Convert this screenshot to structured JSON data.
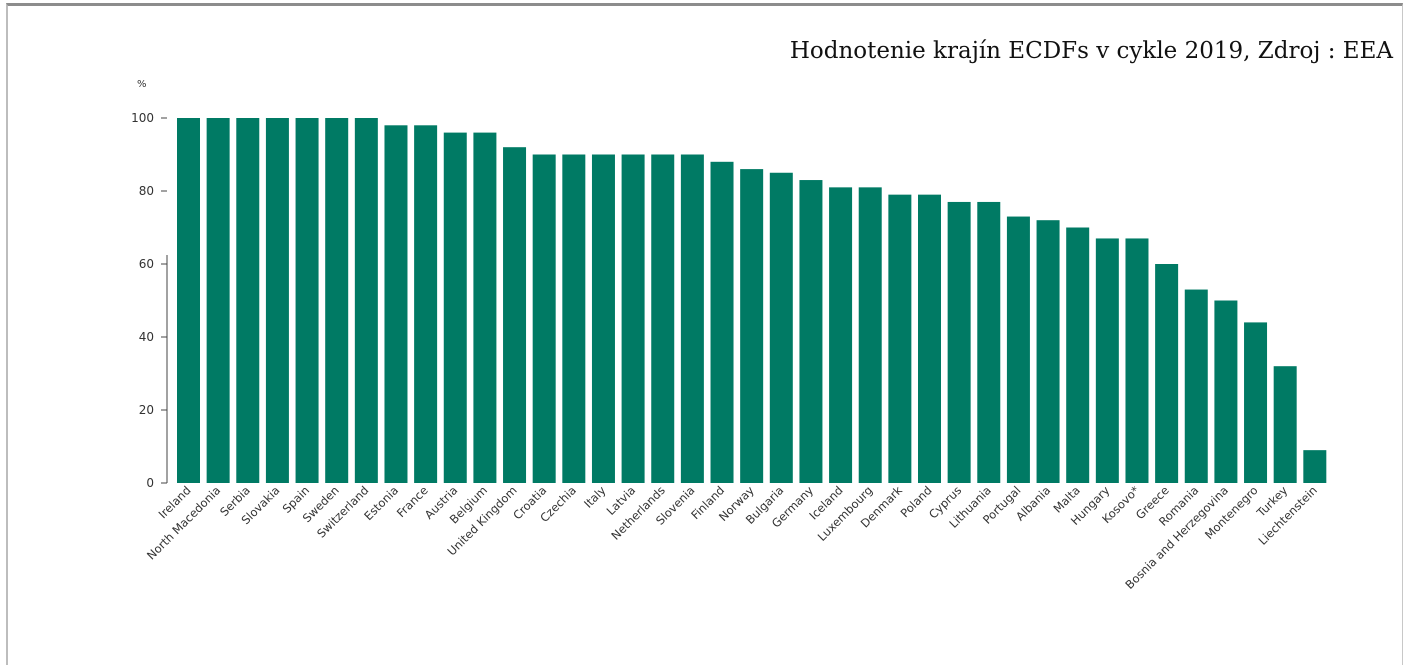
{
  "source_title": "Hodnotenie krajín ECDFs v cykle 2019, Zdroj : EEA",
  "chart_data": {
    "type": "bar",
    "ylabel": "%",
    "ylim": [
      0,
      100
    ],
    "yticks": [
      0,
      20,
      40,
      60,
      80,
      100
    ],
    "grid": false,
    "bar_color": "#007a64",
    "categories": [
      "Ireland",
      "North Macedonia",
      "Serbia",
      "Slovakia",
      "Spain",
      "Sweden",
      "Switzerland",
      "Estonia",
      "France",
      "Austria",
      "Belgium",
      "United Kingdom",
      "Croatia",
      "Czechia",
      "Italy",
      "Latvia",
      "Netherlands",
      "Slovenia",
      "Finland",
      "Norway",
      "Bulgaria",
      "Germany",
      "Iceland",
      "Luxembourg",
      "Denmark",
      "Poland",
      "Cyprus",
      "Lithuania",
      "Portugal",
      "Albania",
      "Malta",
      "Hungary",
      "Kosovo*",
      "Greece",
      "Romania",
      "Bosnia and Herzegovina",
      "Montenegro",
      "Turkey",
      "Liechtenstein"
    ],
    "values": [
      100,
      100,
      100,
      100,
      100,
      100,
      100,
      98,
      98,
      96,
      96,
      92,
      90,
      90,
      90,
      90,
      90,
      90,
      88,
      86,
      85,
      83,
      81,
      81,
      79,
      79,
      77,
      77,
      73,
      72,
      70,
      67,
      67,
      60,
      53,
      50,
      44,
      32,
      9
    ]
  }
}
